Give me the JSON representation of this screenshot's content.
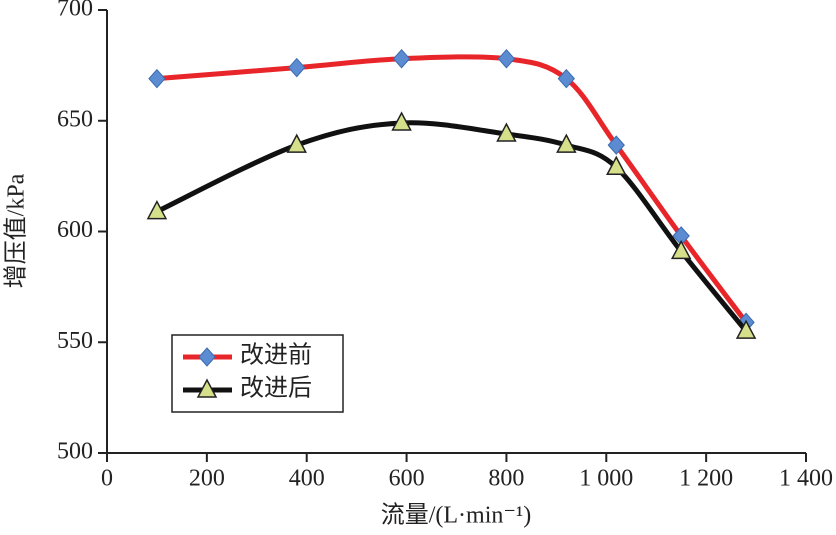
{
  "chart_data": {
    "type": "line",
    "x_label": "流量/(L·min⁻¹)",
    "y_label": "增压值/kPa",
    "xlim": [
      0,
      1400
    ],
    "xticks": [
      0,
      200,
      400,
      600,
      800,
      {
        "value": 1000,
        "label": "1 000"
      },
      {
        "value": 1200,
        "label": "1 200"
      },
      {
        "value": 1400,
        "label": "1 400"
      }
    ],
    "ylim": [
      500,
      700
    ],
    "yticks": [
      500,
      550,
      600,
      650,
      700
    ],
    "series": [
      {
        "name": "改进前",
        "color": "#e8262a",
        "marker": "diamond",
        "marker_color": "#5b8bd0",
        "x": [
          100,
          380,
          590,
          800,
          920,
          1020,
          1150,
          1280
        ],
        "values": [
          669,
          674,
          678,
          678,
          669,
          639,
          598,
          559
        ]
      },
      {
        "name": "改进后",
        "color": "#111111",
        "marker": "triangle",
        "marker_color": "#d6e08a",
        "x": [
          100,
          380,
          590,
          800,
          920,
          1020,
          1150,
          1280
        ],
        "values": [
          609,
          639,
          649,
          644,
          639,
          629,
          591,
          555
        ]
      }
    ]
  }
}
